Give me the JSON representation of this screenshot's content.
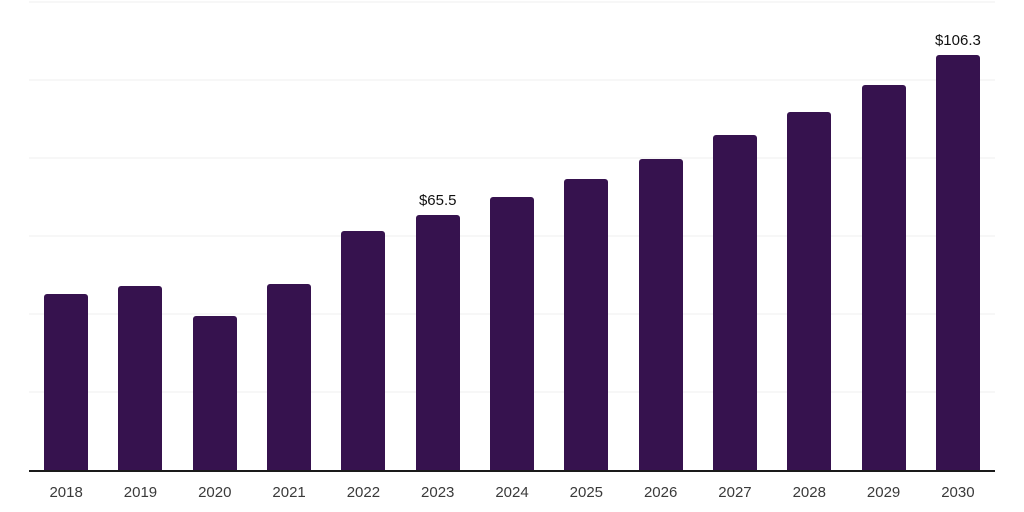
{
  "chart_data": {
    "type": "bar",
    "title": "",
    "xlabel": "",
    "ylabel": "",
    "categories": [
      "2018",
      "2019",
      "2020",
      "2021",
      "2022",
      "2023",
      "2024",
      "2025",
      "2026",
      "2027",
      "2028",
      "2029",
      "2030"
    ],
    "values": [
      45.2,
      47.1,
      39.4,
      47.7,
      61.3,
      65.5,
      70.0,
      74.5,
      79.8,
      85.8,
      91.8,
      98.7,
      106.3
    ],
    "data_labels": [
      null,
      null,
      null,
      null,
      null,
      "$65.5",
      null,
      null,
      null,
      null,
      null,
      null,
      "$106.3"
    ],
    "ylim": [
      0,
      120
    ],
    "grid_interval": 20,
    "grid_visible": true,
    "y_tick_labels_visible": false,
    "legend": "none",
    "colors": {
      "bar": "#36124e",
      "background": "#ffffff",
      "gridline": "#efefef",
      "axis_line": "#1a1a1a",
      "tick_label": "#3a3a3a",
      "data_label": "#111111"
    }
  }
}
